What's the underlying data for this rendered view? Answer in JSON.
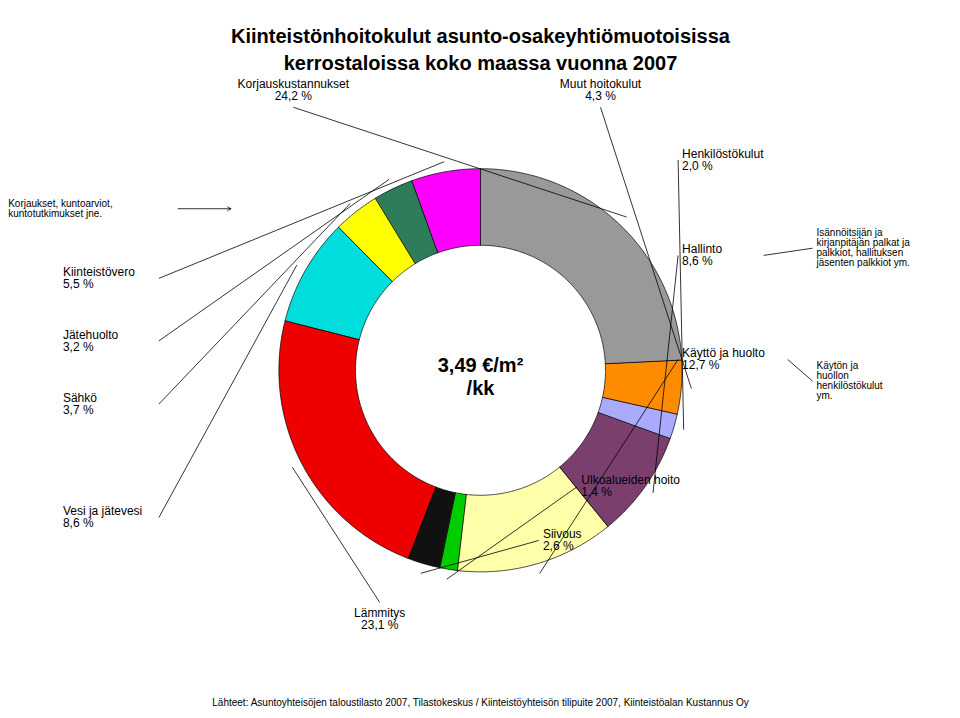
{
  "chart_data": {
    "type": "pie",
    "title": "Kiinteistönhoitokulut asunto-osakeyhtiömuotoisissa\nkerrostaloissa koko maassa vuonna 2007",
    "categories": [
      "Korjauskustannukset",
      "Muut hoitokulut",
      "Henkilöstökulut",
      "Hallinto",
      "Käyttö ja huolto",
      "Ulkoalueiden hoito",
      "Siivous",
      "Lämmitys",
      "Vesi ja jätevesi",
      "Sähkö",
      "Jätehuolto",
      "Kiinteistövero"
    ],
    "values": [
      24.2,
      4.3,
      2.0,
      8.6,
      12.7,
      1.4,
      2.6,
      23.1,
      8.6,
      3.7,
      3.2,
      5.5
    ],
    "value_labels": [
      "24,2 %",
      "4,3 %",
      "2,0 %",
      "8,6 %",
      "12,7 %",
      "1,4 %",
      "2,6 %",
      "23,1 %",
      "8,6 %",
      "3,7 %",
      "3,2 %",
      "5,5 %"
    ],
    "colors": [
      "#999999",
      "#FF8C00",
      "#AAAAFF",
      "#7B3F6E",
      "#FFFFAA",
      "#00CC00",
      "#111111",
      "#EE0000",
      "#00DDDD",
      "#FFFF00",
      "#2E7D5A",
      "#FF00FF"
    ],
    "data_labels": true,
    "annotations": [
      {
        "text": "3,49 €/m²\n/kk"
      },
      {
        "text": "Isännöitsijän ja\nkirjanpitäjän palkat ja\npalkkiot, hallituksen\njäsenten palkkiot ym.",
        "category": "Hallinto"
      },
      {
        "text": "Käytön ja\nhuollon\nhenkilöstökulut\nym.",
        "category": "Käyttö ja huolto"
      },
      {
        "text": "Korjaukset, kuntoarviot,\nkuntotutkimukset jne.",
        "category": "Korjauskustannukset"
      }
    ],
    "caption": "Lähteet: Asuntoyhteisöjen taloustilasto 2007, Tilastokeskus / Kiinteistöyhteisön tilipuite 2007, Kiinteistöalan Kustannus Oy"
  }
}
